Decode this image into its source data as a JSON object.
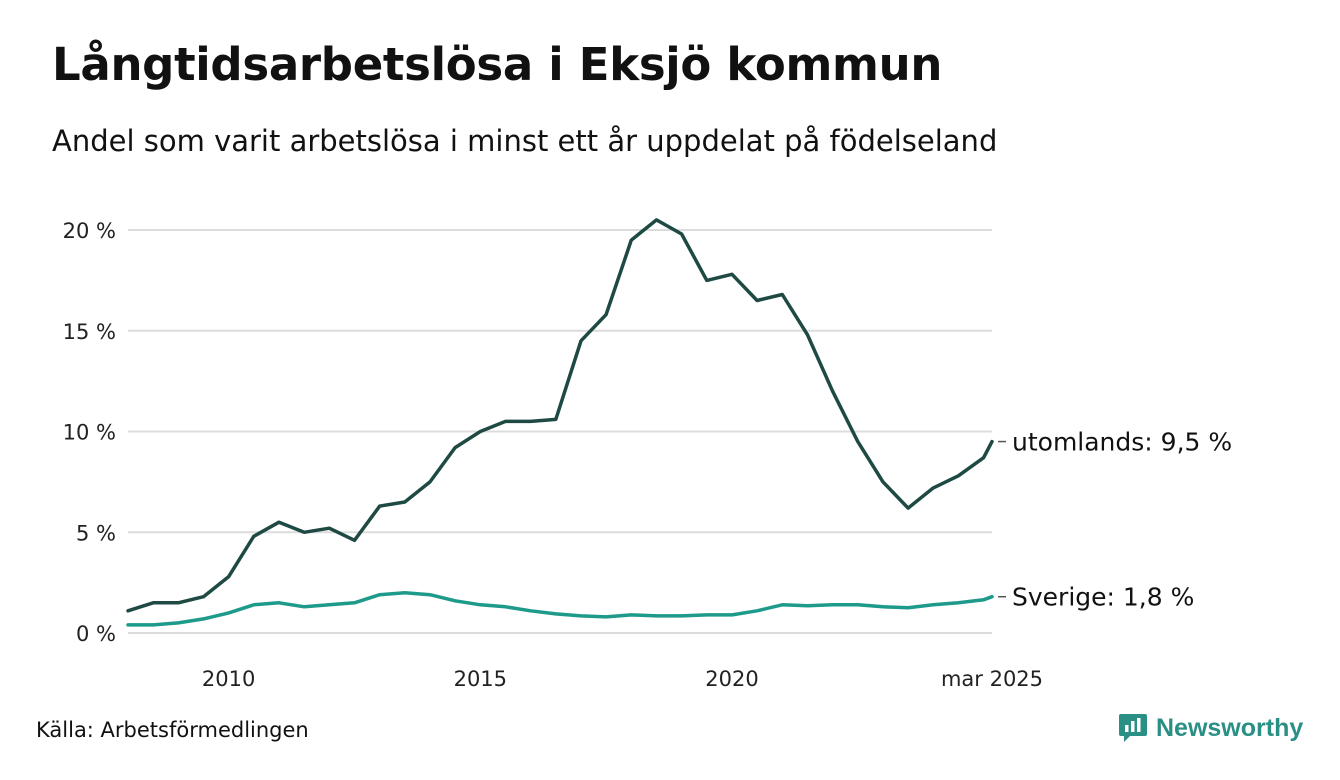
{
  "header": {
    "title": "Långtidsarbetslösa i Eksjö kommun",
    "subtitle": "Andel som varit arbetslösa i minst ett år uppdelat på födelseland"
  },
  "footer": {
    "source": "Källa: Arbetsförmedlingen",
    "brand": "Newsworthy",
    "brand_icon": "newsworthy-logo-icon"
  },
  "colors": {
    "utomlands": "#1f4a44",
    "sverige": "#1e9a8a",
    "grid": "#dcdcdc",
    "brand": "#2a8f85"
  },
  "chart_data": {
    "type": "line",
    "title": "Långtidsarbetslösa i Eksjö kommun",
    "subtitle": "Andel som varit arbetslösa i minst ett år uppdelat på födelseland",
    "xlabel": "",
    "ylabel": "",
    "x_range": [
      "2008-01",
      "2025-03"
    ],
    "ylim": [
      0,
      21
    ],
    "y_ticks": [
      0,
      5,
      10,
      15,
      20
    ],
    "y_tick_labels": [
      "0 %",
      "5 %",
      "10 %",
      "15 %",
      "20 %"
    ],
    "x_ticks": [
      "2010-01",
      "2015-01",
      "2020-01",
      "2025-03"
    ],
    "x_tick_labels": [
      "2010",
      "2015",
      "2020",
      "mar 2025"
    ],
    "grid": "horizontal",
    "legend": "end-labels",
    "series": [
      {
        "key": "utomlands",
        "end_label": "utomlands: 9,5 %",
        "x": [
          "2008-01",
          "2008-07",
          "2009-01",
          "2009-07",
          "2010-01",
          "2010-07",
          "2011-01",
          "2011-07",
          "2012-01",
          "2012-07",
          "2013-01",
          "2013-07",
          "2014-01",
          "2014-07",
          "2015-01",
          "2015-07",
          "2016-01",
          "2016-07",
          "2017-01",
          "2017-07",
          "2018-01",
          "2018-07",
          "2019-01",
          "2019-07",
          "2020-01",
          "2020-07",
          "2021-01",
          "2021-07",
          "2022-01",
          "2022-07",
          "2023-01",
          "2023-07",
          "2024-01",
          "2024-07",
          "2025-01",
          "2025-03"
        ],
        "values": [
          1.1,
          1.5,
          1.5,
          1.8,
          2.8,
          4.8,
          5.5,
          5.0,
          5.2,
          4.6,
          6.3,
          6.5,
          7.5,
          9.2,
          10.0,
          10.5,
          10.5,
          10.6,
          14.5,
          15.8,
          19.5,
          20.5,
          19.8,
          17.5,
          17.8,
          16.5,
          16.8,
          14.8,
          12.0,
          9.5,
          7.5,
          6.2,
          7.2,
          7.8,
          8.7,
          9.5
        ]
      },
      {
        "key": "sverige",
        "end_label": "Sverige: 1,8 %",
        "x": [
          "2008-01",
          "2008-07",
          "2009-01",
          "2009-07",
          "2010-01",
          "2010-07",
          "2011-01",
          "2011-07",
          "2012-01",
          "2012-07",
          "2013-01",
          "2013-07",
          "2014-01",
          "2014-07",
          "2015-01",
          "2015-07",
          "2016-01",
          "2016-07",
          "2017-01",
          "2017-07",
          "2018-01",
          "2018-07",
          "2019-01",
          "2019-07",
          "2020-01",
          "2020-07",
          "2021-01",
          "2021-07",
          "2022-01",
          "2022-07",
          "2023-01",
          "2023-07",
          "2024-01",
          "2024-07",
          "2025-01",
          "2025-03"
        ],
        "values": [
          0.4,
          0.4,
          0.5,
          0.7,
          1.0,
          1.4,
          1.5,
          1.3,
          1.4,
          1.5,
          1.9,
          2.0,
          1.9,
          1.6,
          1.4,
          1.3,
          1.1,
          0.95,
          0.85,
          0.8,
          0.9,
          0.85,
          0.85,
          0.9,
          0.9,
          1.1,
          1.4,
          1.35,
          1.4,
          1.4,
          1.3,
          1.25,
          1.4,
          1.5,
          1.65,
          1.8
        ]
      }
    ]
  }
}
